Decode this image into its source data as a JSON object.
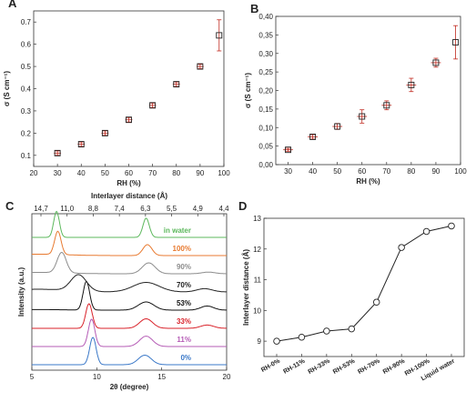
{
  "chart_data": [
    {
      "panel_label": "A",
      "type": "scatter",
      "xlabel": "RH (%)",
      "ylabel": "σ (S cm⁻¹)",
      "xlim": [
        20,
        100
      ],
      "ylim": [
        0.05,
        0.75
      ],
      "xticks": [
        20,
        30,
        40,
        50,
        60,
        70,
        80,
        90,
        100
      ],
      "yticks": [
        0.1,
        0.2,
        0.3,
        0.4,
        0.5,
        0.6,
        0.7
      ],
      "xtick_labels": [
        "20",
        "30",
        "40",
        "50",
        "60",
        "70",
        "80",
        "90",
        "100"
      ],
      "ytick_labels": [
        "0.1",
        "0.2",
        "0.3",
        "0.4",
        "0.5",
        "0.6",
        "0.7"
      ],
      "series": [
        {
          "x": [
            30,
            40,
            50,
            60,
            70,
            80,
            90,
            98
          ],
          "y": [
            0.11,
            0.15,
            0.2,
            0.26,
            0.325,
            0.42,
            0.5,
            0.64
          ],
          "yerr": [
            0.01,
            0.01,
            0.01,
            0.01,
            0.01,
            0.01,
            0.01,
            0.07
          ],
          "xerr": [
            1.5,
            1.5,
            1.5,
            1.5,
            1.5,
            1.5,
            1.5,
            0
          ]
        }
      ],
      "grid": false
    },
    {
      "panel_label": "B",
      "type": "scatter",
      "xlabel": "RH (%)",
      "ylabel": "σ (S cm⁻¹)",
      "xlim": [
        25,
        100
      ],
      "ylim": [
        0,
        0.4
      ],
      "xticks": [
        30,
        40,
        50,
        60,
        70,
        80,
        90,
        100
      ],
      "yticks": [
        0,
        0.05,
        0.1,
        0.15,
        0.2,
        0.25,
        0.3,
        0.35,
        0.4
      ],
      "xtick_labels": [
        "30",
        "40",
        "50",
        "60",
        "70",
        "80",
        "90",
        "100"
      ],
      "ytick_labels": [
        "0,00",
        "0,05",
        "0,10",
        "0,15",
        "0,20",
        "0,25",
        "0,30",
        "0,35",
        "0,40"
      ],
      "series": [
        {
          "x": [
            30,
            40,
            50,
            60,
            70,
            80,
            90,
            98
          ],
          "y": [
            0.04,
            0.075,
            0.103,
            0.13,
            0.16,
            0.215,
            0.275,
            0.33
          ],
          "yerr": [
            0.004,
            0.006,
            0.008,
            0.018,
            0.012,
            0.018,
            0.012,
            0.045
          ],
          "xerr": [
            2,
            2,
            2,
            2,
            2,
            2,
            2,
            0
          ]
        }
      ],
      "grid": false
    },
    {
      "panel_label": "C",
      "type": "line",
      "xlabel": "2θ (degree)",
      "ylabel": "Intensity (a.u.)",
      "top_axis_label": "Interlayer distance (Å)",
      "xlim": [
        5,
        20
      ],
      "xticks": [
        5,
        10,
        15,
        20
      ],
      "xtick_labels": [
        "5",
        "10",
        "15",
        "20"
      ],
      "top_ticks": [
        "14,7",
        "11,0",
        "8,8",
        "7,4",
        "6,3",
        "5,5",
        "4,9",
        "4,4"
      ],
      "series": [
        {
          "name": "0%",
          "color": "#3a78c8",
          "peaks": [
            [
              9.7,
              1.0,
              0.25
            ],
            [
              13.7,
              0.35,
              0.5
            ]
          ],
          "bg": 0
        },
        {
          "name": "11%",
          "color": "#b55bb5",
          "peaks": [
            [
              9.6,
              1.0,
              0.25
            ],
            [
              13.8,
              0.38,
              0.5
            ]
          ],
          "bg": 0
        },
        {
          "name": "33%",
          "color": "#d9222a",
          "peaks": [
            [
              9.4,
              0.9,
              0.25
            ],
            [
              13.8,
              0.35,
              0.5
            ],
            [
              18.5,
              0.12,
              0.5
            ]
          ],
          "bg": 0
        },
        {
          "name": "53%",
          "color": "#111111",
          "peaks": [
            [
              9.2,
              1.05,
              0.25
            ],
            [
              13.8,
              0.3,
              0.6
            ],
            [
              18.5,
              0.15,
              0.5
            ]
          ],
          "bg": 0.02
        },
        {
          "name": "70%",
          "color": "#222222",
          "peaks": [
            [
              8.6,
              0.6,
              0.6
            ],
            [
              13.8,
              0.35,
              1.0
            ],
            [
              18.3,
              0.12,
              0.6
            ]
          ],
          "bg": 0.1
        },
        {
          "name": "90%",
          "color": "#8c8c8c",
          "peaks": [
            [
              7.3,
              0.75,
              0.35
            ],
            [
              14.0,
              0.4,
              0.5
            ],
            [
              18.6,
              0.06,
              0.5
            ]
          ],
          "bg": 0.05
        },
        {
          "name": "100%",
          "color": "#e87a30",
          "peaks": [
            [
              7.0,
              0.85,
              0.25
            ],
            [
              13.9,
              0.4,
              0.35
            ]
          ],
          "bg": 0.05
        },
        {
          "name": "in water",
          "color": "#5cb85c",
          "peaks": [
            [
              6.9,
              0.95,
              0.22
            ],
            [
              13.8,
              0.7,
              0.25
            ]
          ],
          "bg": 0
        }
      ],
      "grid": false
    },
    {
      "panel_label": "D",
      "type": "line",
      "xlabel": "",
      "ylabel": "Interlayer distance (Å)",
      "ylim": [
        8.5,
        13
      ],
      "yticks": [
        9,
        10,
        11,
        12,
        13
      ],
      "ytick_labels": [
        "9",
        "10",
        "11",
        "12",
        "13"
      ],
      "categories": [
        "RH-0%",
        "RH-11%",
        "RH-33%",
        "RH-53%",
        "RH-70%",
        "RH-90%",
        "RH-100%",
        "Liquid water"
      ],
      "values": [
        9.0,
        9.13,
        9.33,
        9.4,
        10.27,
        12.05,
        12.57,
        12.75
      ],
      "grid": false
    }
  ]
}
